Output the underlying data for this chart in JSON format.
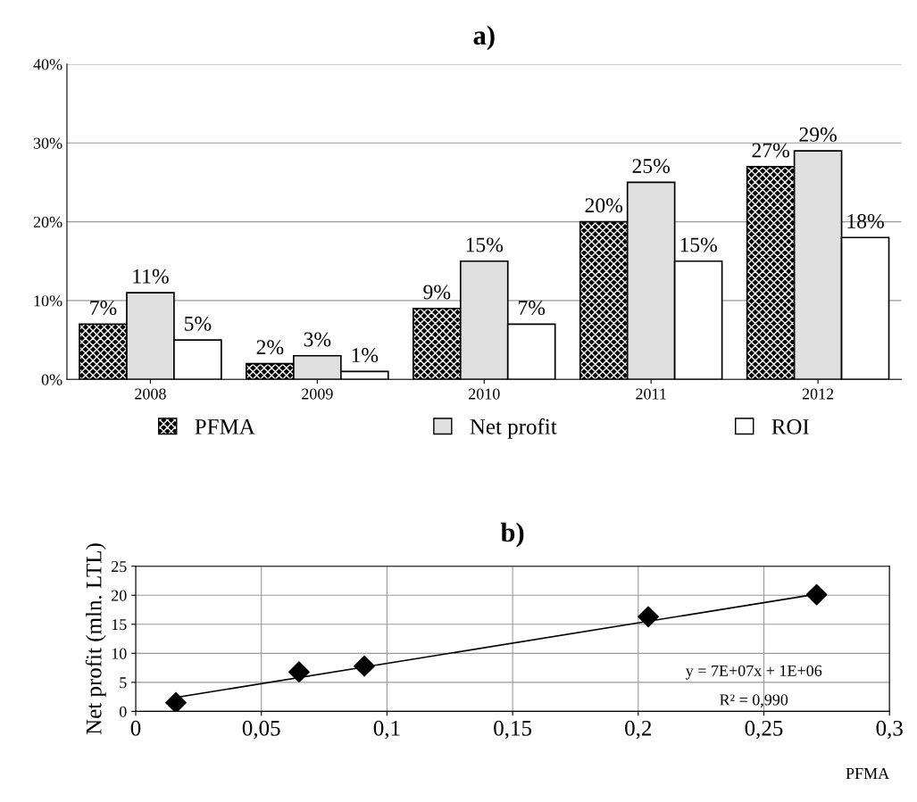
{
  "chart_data": [
    {
      "type": "bar",
      "title": "a)",
      "categories": [
        "2008",
        "2009",
        "2010",
        "2011",
        "2012"
      ],
      "series": [
        {
          "name": "PFMA",
          "color": "#000000",
          "values": [
            7,
            2,
            9,
            20,
            27
          ],
          "value_labels": [
            "7%",
            "2%",
            "9%",
            "20%",
            "27%"
          ]
        },
        {
          "name": "Net profit",
          "color": "#e0e0e0",
          "values": [
            11,
            3,
            15,
            25,
            29
          ],
          "value_labels": [
            "11%",
            "3%",
            "15%",
            "25%",
            "29%"
          ]
        },
        {
          "name": "ROI",
          "color": "#ffffff",
          "values": [
            5,
            1,
            7,
            15,
            18
          ],
          "value_labels": [
            "5%",
            "1%",
            "7%",
            "15%",
            "18%"
          ]
        }
      ],
      "ylim": [
        0,
        40
      ],
      "yticks": [
        {
          "value": 0,
          "label": "0%"
        },
        {
          "value": 10,
          "label": "10%"
        },
        {
          "value": 20,
          "label": "20%"
        },
        {
          "value": 30,
          "label": "30%"
        },
        {
          "value": 40,
          "label": "40%"
        }
      ],
      "grid": "y",
      "legend": "bottom"
    },
    {
      "type": "scatter",
      "title": "b)",
      "xlabel": "PFMA",
      "ylabel": "Net profit (mln. LTL)",
      "series": [
        {
          "type": "scatter",
          "marker": "diamond",
          "color": "#000000",
          "x": [
            0.016,
            0.065,
            0.091,
            0.204,
            0.271
          ],
          "values": [
            1.5,
            6.8,
            7.8,
            16.3,
            20.1
          ]
        },
        {
          "type": "line",
          "color": "#000000",
          "x": [
            0.016,
            0.271
          ],
          "values": [
            2.4,
            20.2
          ]
        }
      ],
      "xlim": [
        0,
        0.3
      ],
      "xticks": [
        0,
        {
          "value": 0.05,
          "label": "0,05"
        },
        {
          "value": 0.1,
          "label": "0,1"
        },
        {
          "value": 0.15,
          "label": "0,15"
        },
        {
          "value": 0.2,
          "label": "0,2"
        },
        {
          "value": 0.25,
          "label": "0,25"
        },
        {
          "value": 0.3,
          "label": "0,3"
        }
      ],
      "ylim": [
        0,
        25
      ],
      "yticks": [
        0,
        5,
        10,
        15,
        20,
        25
      ],
      "grid": true,
      "annotations": [
        "y = 7E+07x + 1E+06",
        "R² = 0,990"
      ]
    }
  ]
}
